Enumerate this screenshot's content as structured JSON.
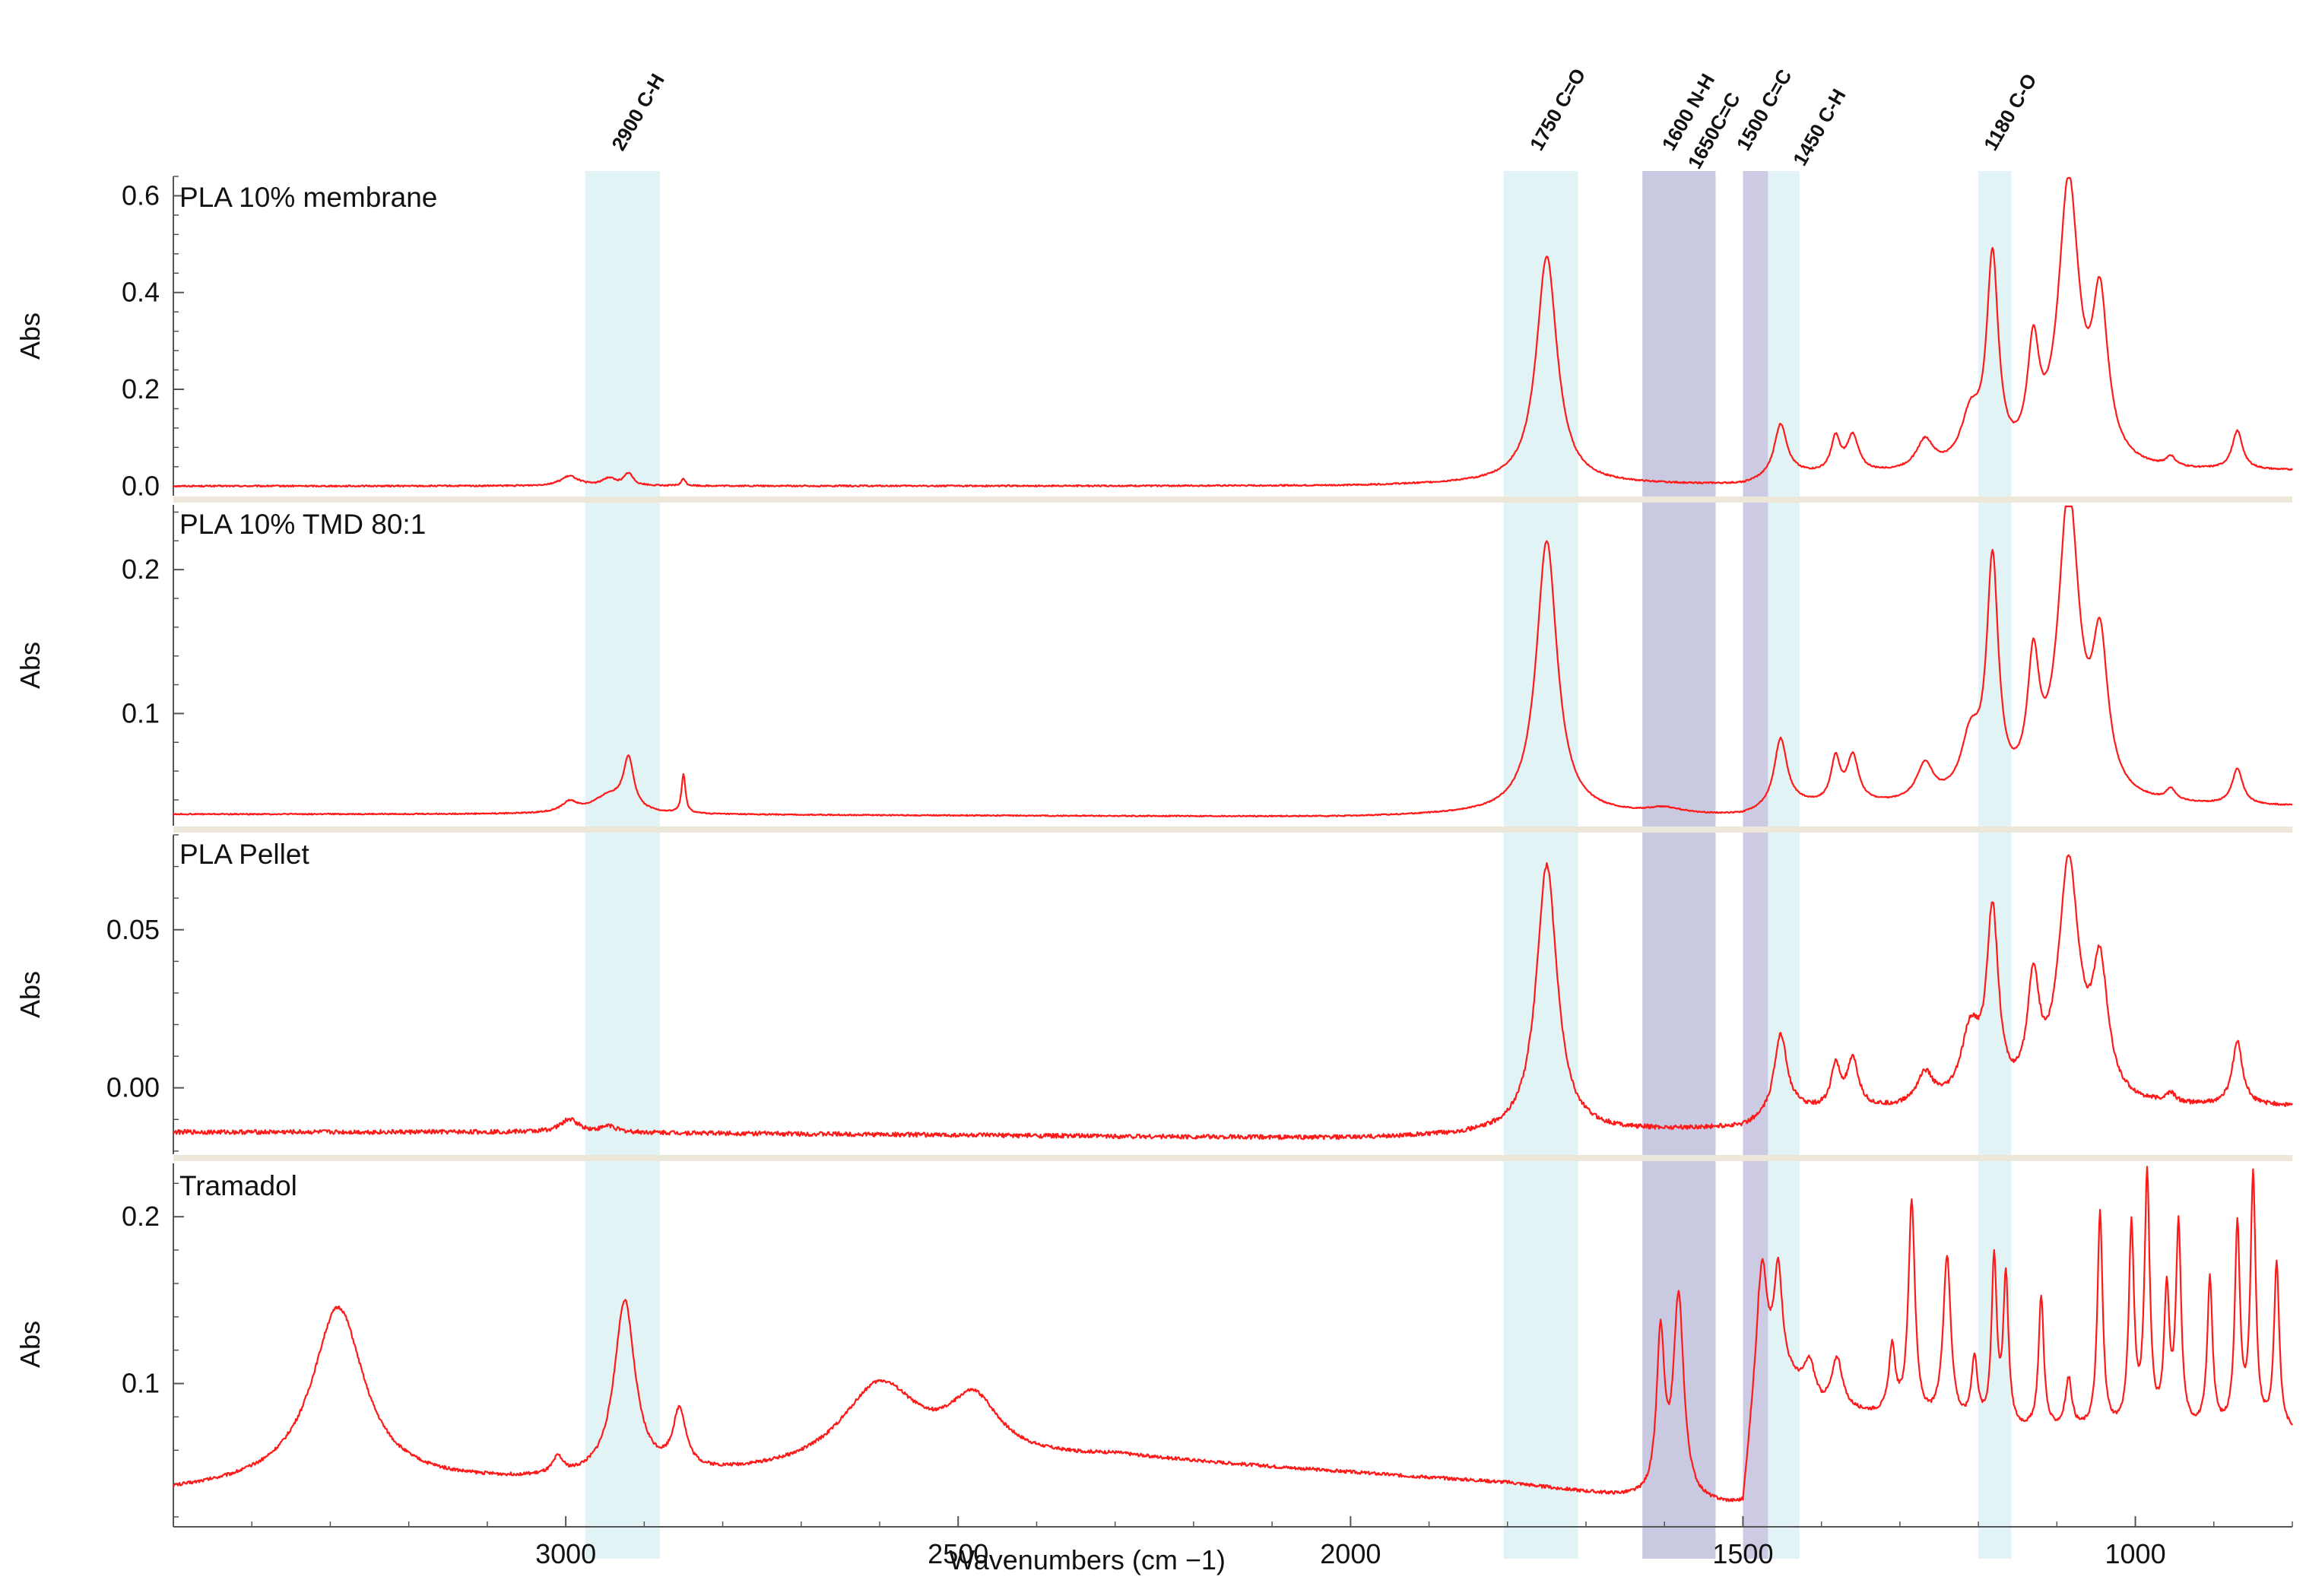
{
  "chart_data": {
    "type": "line",
    "xlabel": "Wavenumbers (cm −1)",
    "xlim": [
      3500,
      800
    ],
    "x_reversed": true,
    "x_ticks": [
      "3000",
      "2500",
      "2000",
      "1500",
      "1000"
    ],
    "x_tick_values": [
      3000,
      2500,
      2000,
      1500,
      1000
    ],
    "line_color": "#ff1a1a",
    "band_colors": {
      "cyan": "#dff2f4",
      "purple": "#c9c8e2"
    },
    "bands": [
      {
        "label": "2900 C-H",
        "x_from": 2975,
        "x_to": 2880,
        "color": "cyan"
      },
      {
        "label": "1750 C=O",
        "x_from": 1805,
        "x_to": 1710,
        "color": "cyan"
      },
      {
        "label": "1600 N-H",
        "x_from": 1628,
        "x_to": 1535,
        "color": "purple"
      },
      {
        "label": "1650C=C",
        "x_from": 1628,
        "x_to": 1535,
        "color": "purple"
      },
      {
        "label": "1500 C=C",
        "x_from": 1500,
        "x_to": 1468,
        "color": "purple"
      },
      {
        "label": "1450 C-H",
        "x_from": 1468,
        "x_to": 1428,
        "color": "cyan"
      },
      {
        "label": "1180 C-O",
        "x_from": 1200,
        "x_to": 1158,
        "color": "cyan"
      }
    ],
    "panels": [
      {
        "title": "PLA 10% membrane",
        "ylabel": "Abs",
        "ylim": [
          -0.02,
          0.64
        ],
        "y_ticks": [
          "0.0",
          "0.2",
          "0.4",
          "0.6"
        ],
        "y_tick_values": [
          0.0,
          0.2,
          0.4,
          0.6
        ],
        "baseline": [
          [
            3500,
            0.0
          ],
          [
            3000,
            0.0
          ],
          [
            2000,
            0.0
          ],
          [
            1800,
            0.005
          ],
          [
            1500,
            0.0
          ],
          [
            1430,
            0.02
          ],
          [
            800,
            0.03
          ]
        ],
        "peaks": [
          [
            2995,
            0.02,
            14
          ],
          [
            2945,
            0.015,
            10
          ],
          [
            2920,
            0.025,
            7
          ],
          [
            2850,
            0.015,
            3
          ],
          [
            1750,
            0.47,
            16
          ],
          [
            1452,
            0.11,
            10
          ],
          [
            1382,
            0.07,
            7
          ],
          [
            1360,
            0.075,
            9
          ],
          [
            1268,
            0.06,
            13
          ],
          [
            1210,
            0.1,
            15
          ],
          [
            1182,
            0.42,
            9
          ],
          [
            1130,
            0.22,
            9
          ],
          [
            1085,
            0.58,
            16
          ],
          [
            1045,
            0.32,
            12
          ],
          [
            955,
            0.02,
            7
          ],
          [
            870,
            0.08,
            8
          ]
        ],
        "noise": 0.0015
      },
      {
        "title": "PLA 10% TMD 80:1",
        "ylabel": "Abs",
        "ylim": [
          0.022,
          0.245
        ],
        "y_ticks": [
          "0.1",
          "0.2"
        ],
        "y_tick_values": [
          0.1,
          0.2
        ],
        "baseline": [
          [
            3500,
            0.03
          ],
          [
            3000,
            0.03
          ],
          [
            2000,
            0.028
          ],
          [
            1800,
            0.03
          ],
          [
            1500,
            0.028
          ],
          [
            1430,
            0.035
          ],
          [
            800,
            0.035
          ]
        ],
        "peaks": [
          [
            2995,
            0.007,
            12
          ],
          [
            2945,
            0.012,
            25
          ],
          [
            2920,
            0.035,
            8
          ],
          [
            2850,
            0.027,
            3
          ],
          [
            1750,
            0.19,
            16
          ],
          [
            1600,
            0.004,
            25
          ],
          [
            1452,
            0.048,
            10
          ],
          [
            1382,
            0.03,
            7
          ],
          [
            1360,
            0.032,
            9
          ],
          [
            1268,
            0.025,
            13
          ],
          [
            1210,
            0.04,
            15
          ],
          [
            1182,
            0.16,
            9
          ],
          [
            1130,
            0.085,
            9
          ],
          [
            1085,
            0.21,
            16
          ],
          [
            1045,
            0.1,
            12
          ],
          [
            955,
            0.008,
            7
          ],
          [
            870,
            0.025,
            8
          ]
        ],
        "noise": 0.0004
      },
      {
        "title": "PLA Pellet",
        "ylabel": "Abs",
        "ylim": [
          -0.021,
          0.08
        ],
        "y_ticks": [
          "0.00",
          "0.05"
        ],
        "y_tick_values": [
          0.0,
          0.05
        ],
        "baseline": [
          [
            3500,
            -0.014
          ],
          [
            3000,
            -0.014
          ],
          [
            2000,
            -0.016
          ],
          [
            1800,
            -0.015
          ],
          [
            1500,
            -0.013
          ],
          [
            1430,
            -0.008
          ],
          [
            800,
            -0.006
          ]
        ],
        "peaks": [
          [
            2995,
            0.004,
            14
          ],
          [
            2945,
            0.002,
            10
          ],
          [
            1750,
            0.085,
            16
          ],
          [
            1452,
            0.026,
            10
          ],
          [
            1382,
            0.013,
            7
          ],
          [
            1360,
            0.015,
            9
          ],
          [
            1268,
            0.01,
            13
          ],
          [
            1210,
            0.022,
            15
          ],
          [
            1182,
            0.058,
            9
          ],
          [
            1130,
            0.035,
            9
          ],
          [
            1085,
            0.075,
            16
          ],
          [
            1045,
            0.04,
            12
          ],
          [
            955,
            0.003,
            7
          ],
          [
            870,
            0.02,
            8
          ]
        ],
        "noise": 0.0007
      },
      {
        "title": "Tramadol",
        "ylabel": "Abs",
        "ylim": [
          0.015,
          0.232
        ],
        "y_ticks": [
          "0.1",
          "0.2"
        ],
        "y_tick_values": [
          0.1,
          0.2
        ],
        "baseline": [
          [
            3500,
            0.035
          ],
          [
            3350,
            0.04
          ],
          [
            3000,
            0.04
          ],
          [
            2700,
            0.045
          ],
          [
            2300,
            0.055
          ],
          [
            1800,
            0.04
          ],
          [
            1630,
            0.03
          ],
          [
            1500,
            0.025
          ],
          [
            1480,
            0.12
          ],
          [
            1400,
            0.085
          ],
          [
            1200,
            0.07
          ],
          [
            800,
            0.07
          ]
        ],
        "peaks": [
          [
            3290,
            0.105,
            40
          ],
          [
            3010,
            0.01,
            8
          ],
          [
            2925,
            0.105,
            16
          ],
          [
            2855,
            0.035,
            10
          ],
          [
            2600,
            0.05,
            60
          ],
          [
            2480,
            0.035,
            40
          ],
          [
            1605,
            0.095,
            6
          ],
          [
            1582,
            0.12,
            8
          ],
          [
            1475,
            0.05,
            6
          ],
          [
            1455,
            0.06,
            6
          ],
          [
            1415,
            0.02,
            8
          ],
          [
            1380,
            0.03,
            8
          ],
          [
            1310,
            0.04,
            5
          ],
          [
            1285,
            0.13,
            5
          ],
          [
            1240,
            0.1,
            6
          ],
          [
            1205,
            0.04,
            5
          ],
          [
            1180,
            0.1,
            4
          ],
          [
            1165,
            0.09,
            4
          ],
          [
            1120,
            0.08,
            4
          ],
          [
            1085,
            0.03,
            5
          ],
          [
            1045,
            0.13,
            4
          ],
          [
            1005,
            0.12,
            4
          ],
          [
            985,
            0.15,
            4
          ],
          [
            960,
            0.08,
            4
          ],
          [
            945,
            0.12,
            4
          ],
          [
            905,
            0.09,
            4
          ],
          [
            870,
            0.12,
            4
          ],
          [
            850,
            0.15,
            4
          ],
          [
            820,
            0.1,
            4
          ]
        ],
        "noise": 0.001
      }
    ]
  }
}
